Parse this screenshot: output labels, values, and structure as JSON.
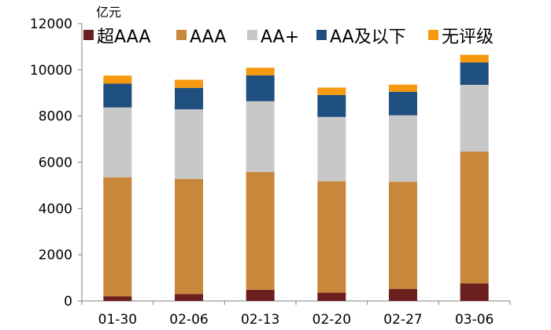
{
  "chart_data": {
    "type": "bar",
    "stacked": true,
    "title": "",
    "xlabel": "",
    "ylabel": "亿元",
    "ylim": [
      0,
      12000
    ],
    "yticks": [
      0,
      2000,
      4000,
      6000,
      8000,
      10000,
      12000
    ],
    "ytick_labels": [
      "0",
      "2000",
      "4000",
      "6000",
      "8000",
      "10000",
      "12000"
    ],
    "categories": [
      "01-30",
      "02-06",
      "02-13",
      "02-20",
      "02-27",
      "03-06"
    ],
    "legend_position": "top",
    "series": [
      {
        "name": "超AAA",
        "color": "#6b1f1f",
        "values": [
          200,
          300,
          480,
          360,
          520,
          760
        ]
      },
      {
        "name": "AAA",
        "color": "#c8873a",
        "values": [
          5150,
          4980,
          5100,
          4820,
          4640,
          5700
        ]
      },
      {
        "name": "AA+",
        "color": "#c8c8c8",
        "values": [
          3020,
          3010,
          3060,
          2780,
          2870,
          2890
        ]
      },
      {
        "name": "AA及以下",
        "color": "#205080",
        "values": [
          1030,
          930,
          1120,
          950,
          1020,
          970
        ]
      },
      {
        "name": "无评级",
        "color": "#f7990f",
        "values": [
          350,
          350,
          330,
          320,
          310,
          330
        ]
      }
    ]
  }
}
